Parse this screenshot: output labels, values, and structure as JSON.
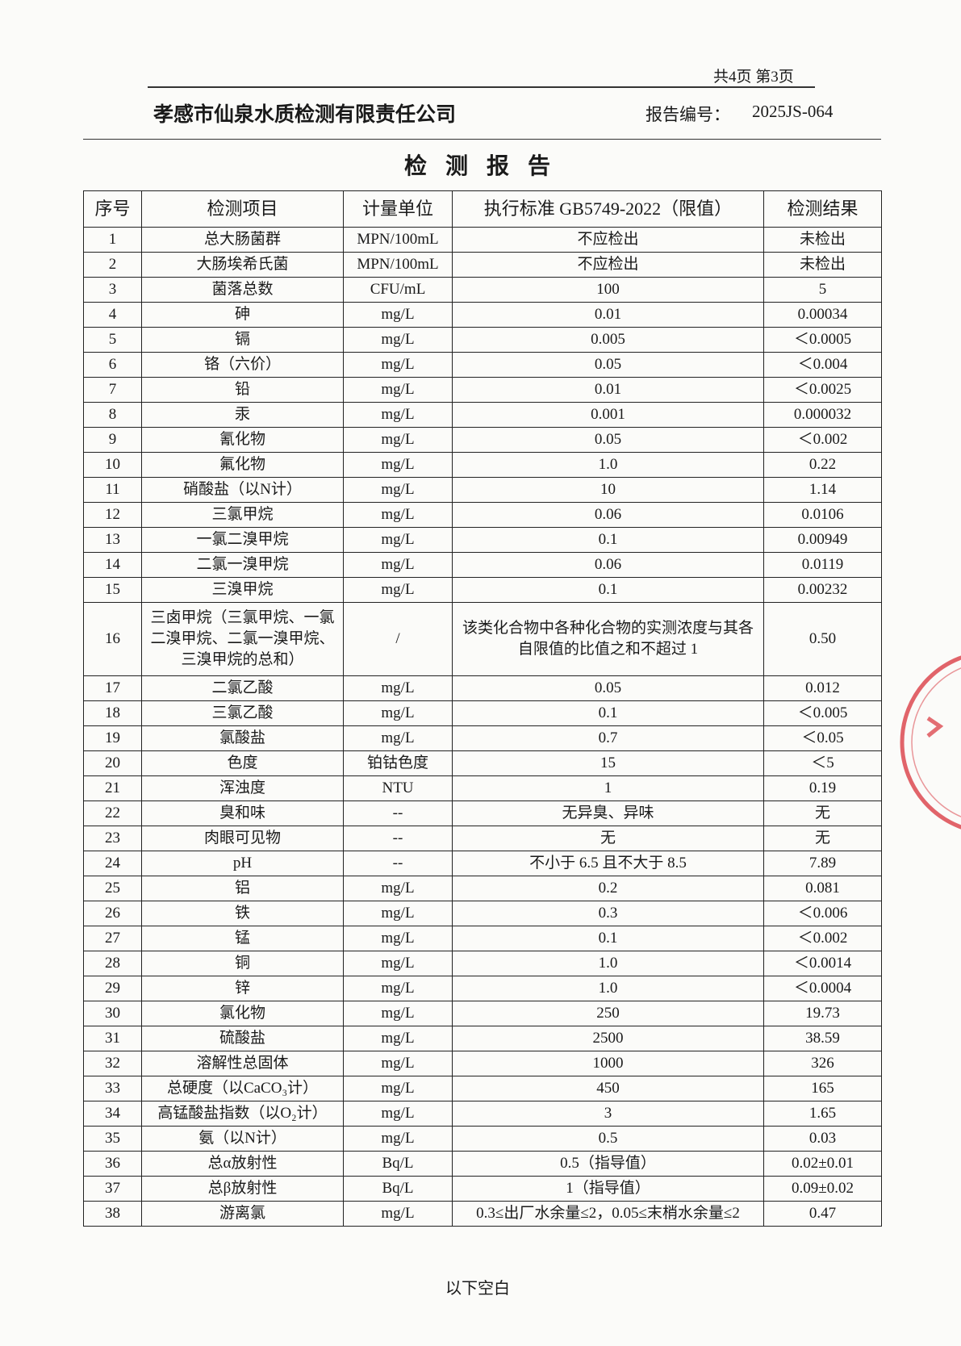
{
  "header": {
    "page_info": "共4页 第3页",
    "company": "孝感市仙泉水质检测有限责任公司",
    "report_no_label": "报告编号：",
    "report_no": "2025JS-064",
    "title": "检 测 报 告"
  },
  "table": {
    "columns": [
      "序号",
      "检测项目",
      "计量单位",
      "执行标准 GB5749-2022（限值）",
      "检测结果"
    ],
    "rows": [
      [
        "1",
        "总大肠菌群",
        "MPN/100mL",
        "不应检出",
        "未检出"
      ],
      [
        "2",
        "大肠埃希氏菌",
        "MPN/100mL",
        "不应检出",
        "未检出"
      ],
      [
        "3",
        "菌落总数",
        "CFU/mL",
        "100",
        "5"
      ],
      [
        "4",
        "砷",
        "mg/L",
        "0.01",
        "0.00034"
      ],
      [
        "5",
        "镉",
        "mg/L",
        "0.005",
        "＜0.0005"
      ],
      [
        "6",
        "铬（六价）",
        "mg/L",
        "0.05",
        "＜0.004"
      ],
      [
        "7",
        "铅",
        "mg/L",
        "0.01",
        "＜0.0025"
      ],
      [
        "8",
        "汞",
        "mg/L",
        "0.001",
        "0.000032"
      ],
      [
        "9",
        "氰化物",
        "mg/L",
        "0.05",
        "＜0.002"
      ],
      [
        "10",
        "氟化物",
        "mg/L",
        "1.0",
        "0.22"
      ],
      [
        "11",
        "硝酸盐（以N计）",
        "mg/L",
        "10",
        "1.14"
      ],
      [
        "12",
        "三氯甲烷",
        "mg/L",
        "0.06",
        "0.0106"
      ],
      [
        "13",
        "一氯二溴甲烷",
        "mg/L",
        "0.1",
        "0.00949"
      ],
      [
        "14",
        "二氯一溴甲烷",
        "mg/L",
        "0.06",
        "0.0119"
      ],
      [
        "15",
        "三溴甲烷",
        "mg/L",
        "0.1",
        "0.00232"
      ],
      [
        "16",
        "三卤甲烷（三氯甲烷、一氯二溴甲烷、二氯一溴甲烷、三溴甲烷的总和）",
        "/",
        "该类化合物中各种化合物的实测浓度与其各自限值的比值之和不超过 1",
        "0.50"
      ],
      [
        "17",
        "二氯乙酸",
        "mg/L",
        "0.05",
        "0.012"
      ],
      [
        "18",
        "三氯乙酸",
        "mg/L",
        "0.1",
        "＜0.005"
      ],
      [
        "19",
        "氯酸盐",
        "mg/L",
        "0.7",
        "＜0.05"
      ],
      [
        "20",
        "色度",
        "铂钴色度",
        "15",
        "＜5"
      ],
      [
        "21",
        "浑浊度",
        "NTU",
        "1",
        "0.19"
      ],
      [
        "22",
        "臭和味",
        "--",
        "无异臭、异味",
        "无"
      ],
      [
        "23",
        "肉眼可见物",
        "--",
        "无",
        "无"
      ],
      [
        "24",
        "pH",
        "--",
        "不小于 6.5 且不大于 8.5",
        "7.89"
      ],
      [
        "25",
        "铝",
        "mg/L",
        "0.2",
        "0.081"
      ],
      [
        "26",
        "铁",
        "mg/L",
        "0.3",
        "＜0.006"
      ],
      [
        "27",
        "锰",
        "mg/L",
        "0.1",
        "＜0.002"
      ],
      [
        "28",
        "铜",
        "mg/L",
        "1.0",
        "＜0.0014"
      ],
      [
        "29",
        "锌",
        "mg/L",
        "1.0",
        "＜0.0004"
      ],
      [
        "30",
        "氯化物",
        "mg/L",
        "250",
        "19.73"
      ],
      [
        "31",
        "硫酸盐",
        "mg/L",
        "2500",
        "38.59"
      ],
      [
        "32",
        "溶解性总固体",
        "mg/L",
        "1000",
        "326"
      ],
      [
        "33",
        "总硬度（以CaCO₃计）",
        "mg/L",
        "450",
        "165"
      ],
      [
        "34",
        "高锰酸盐指数（以O₂计）",
        "mg/L",
        "3",
        "1.65"
      ],
      [
        "35",
        "氨（以N计）",
        "mg/L",
        "0.5",
        "0.03"
      ],
      [
        "36",
        "总α放射性",
        "Bq/L",
        "0.5（指导值）",
        "0.02±0.01"
      ],
      [
        "37",
        "总β放射性",
        "Bq/L",
        "1（指导值）",
        "0.09±0.02"
      ],
      [
        "38",
        "游离氯",
        "mg/L",
        "0.3≤出厂水余量≤2，0.05≤末梢水余量≤2",
        "0.47"
      ]
    ]
  },
  "footer": {
    "note": "以下空白"
  }
}
